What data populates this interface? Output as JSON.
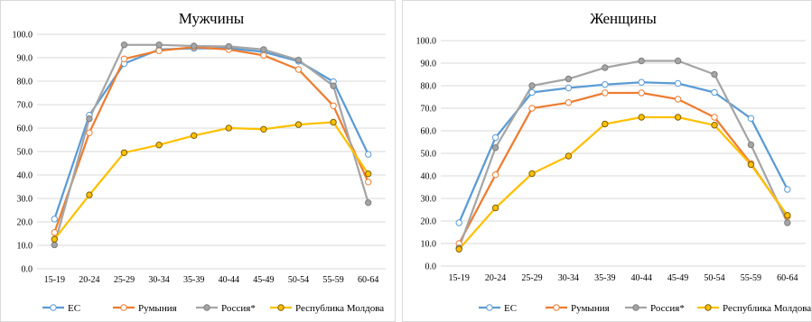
{
  "chart_data": [
    {
      "type": "line",
      "title": "Мужчины",
      "categories": [
        "15-19",
        "20-24",
        "25-29",
        "30-34",
        "35-39",
        "40-44",
        "45-49",
        "50-54",
        "55-59",
        "60-64"
      ],
      "ylim": [
        0,
        100
      ],
      "yticks": [
        "0.0",
        "10.0",
        "20.0",
        "30.0",
        "40.0",
        "50.0",
        "60.0",
        "70.0",
        "80.0",
        "90.0",
        "100.0"
      ],
      "grid": true,
      "legend": "bottom",
      "series": [
        {
          "name": "ЕС",
          "color": "#5b9bd5",
          "values": [
            21.2,
            65.5,
            87.5,
            93.5,
            94.0,
            94.0,
            92.5,
            88.5,
            79.8,
            48.8
          ]
        },
        {
          "name": "Румыния",
          "color": "#ed7d31",
          "values": [
            15.5,
            58.0,
            89.5,
            93.0,
            94.5,
            93.5,
            91.0,
            85.0,
            69.5,
            37.0
          ]
        },
        {
          "name": "Россия*",
          "color": "#a5a5a5",
          "values": [
            10.2,
            64.0,
            95.5,
            95.5,
            95.0,
            94.8,
            93.5,
            89.0,
            78.0,
            28.2
          ]
        },
        {
          "name": "Республика Молдова",
          "color": "#ffc000",
          "values": [
            12.6,
            31.5,
            49.5,
            52.8,
            56.8,
            60.0,
            59.5,
            61.5,
            62.5,
            40.5
          ]
        }
      ]
    },
    {
      "type": "line",
      "title": "Женщины",
      "categories": [
        "15-19",
        "20-24",
        "25-29",
        "30-34",
        "35-39",
        "40-44",
        "45-49",
        "50-54",
        "55-59",
        "60-64"
      ],
      "ylim": [
        0,
        100
      ],
      "yticks": [
        "0.0",
        "10.0",
        "20.0",
        "30.0",
        "40.0",
        "50.0",
        "60.0",
        "70.0",
        "80.0",
        "90.0",
        "100.0"
      ],
      "grid": true,
      "legend": "bottom",
      "series": [
        {
          "name": "ЕС",
          "color": "#5b9bd5",
          "values": [
            19.2,
            57.0,
            77.0,
            79.0,
            80.5,
            81.5,
            81.0,
            77.0,
            65.5,
            34.0
          ]
        },
        {
          "name": "Румыния",
          "color": "#ed7d31",
          "values": [
            10.0,
            40.5,
            70.0,
            72.5,
            76.8,
            76.8,
            74.0,
            66.0,
            45.5,
            22.0
          ]
        },
        {
          "name": "Россия*",
          "color": "#a5a5a5",
          "values": [
            8.0,
            52.5,
            80.0,
            83.0,
            88.0,
            91.0,
            91.0,
            85.0,
            53.8,
            19.2
          ]
        },
        {
          "name": "Республика Молдова",
          "color": "#ffc000",
          "values": [
            7.5,
            25.8,
            41.0,
            48.8,
            63.0,
            66.0,
            66.0,
            62.5,
            45.0,
            22.5
          ]
        }
      ]
    }
  ]
}
